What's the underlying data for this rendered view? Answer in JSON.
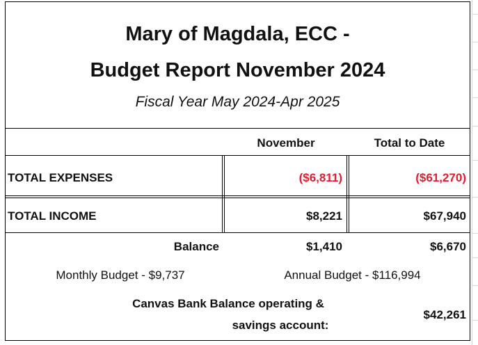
{
  "header": {
    "title_line1": "Mary of Magdala, ECC -",
    "title_line2": "Budget Report November 2024",
    "subtitle": "Fiscal Year May 2024-Apr 2025"
  },
  "columns": {
    "month": "November",
    "total": "Total to Date"
  },
  "rows": {
    "expenses": {
      "label": "TOTAL EXPENSES",
      "month": "($6,811)",
      "total": "($61,270)",
      "color": "#e8192c"
    },
    "income": {
      "label": "TOTAL INCOME",
      "month": "$8,221",
      "total": "$67,940"
    }
  },
  "summary": {
    "balance_label": "Balance",
    "balance_month": "$1,410",
    "balance_total": "$6,670",
    "monthly_budget": "Monthly Budget - $9,737",
    "annual_budget": "Annual Budget - $116,994",
    "bank_label_line1": "Canvas Bank Balance operating &",
    "bank_label_line2": "savings account:",
    "bank_value": "$42,261"
  }
}
